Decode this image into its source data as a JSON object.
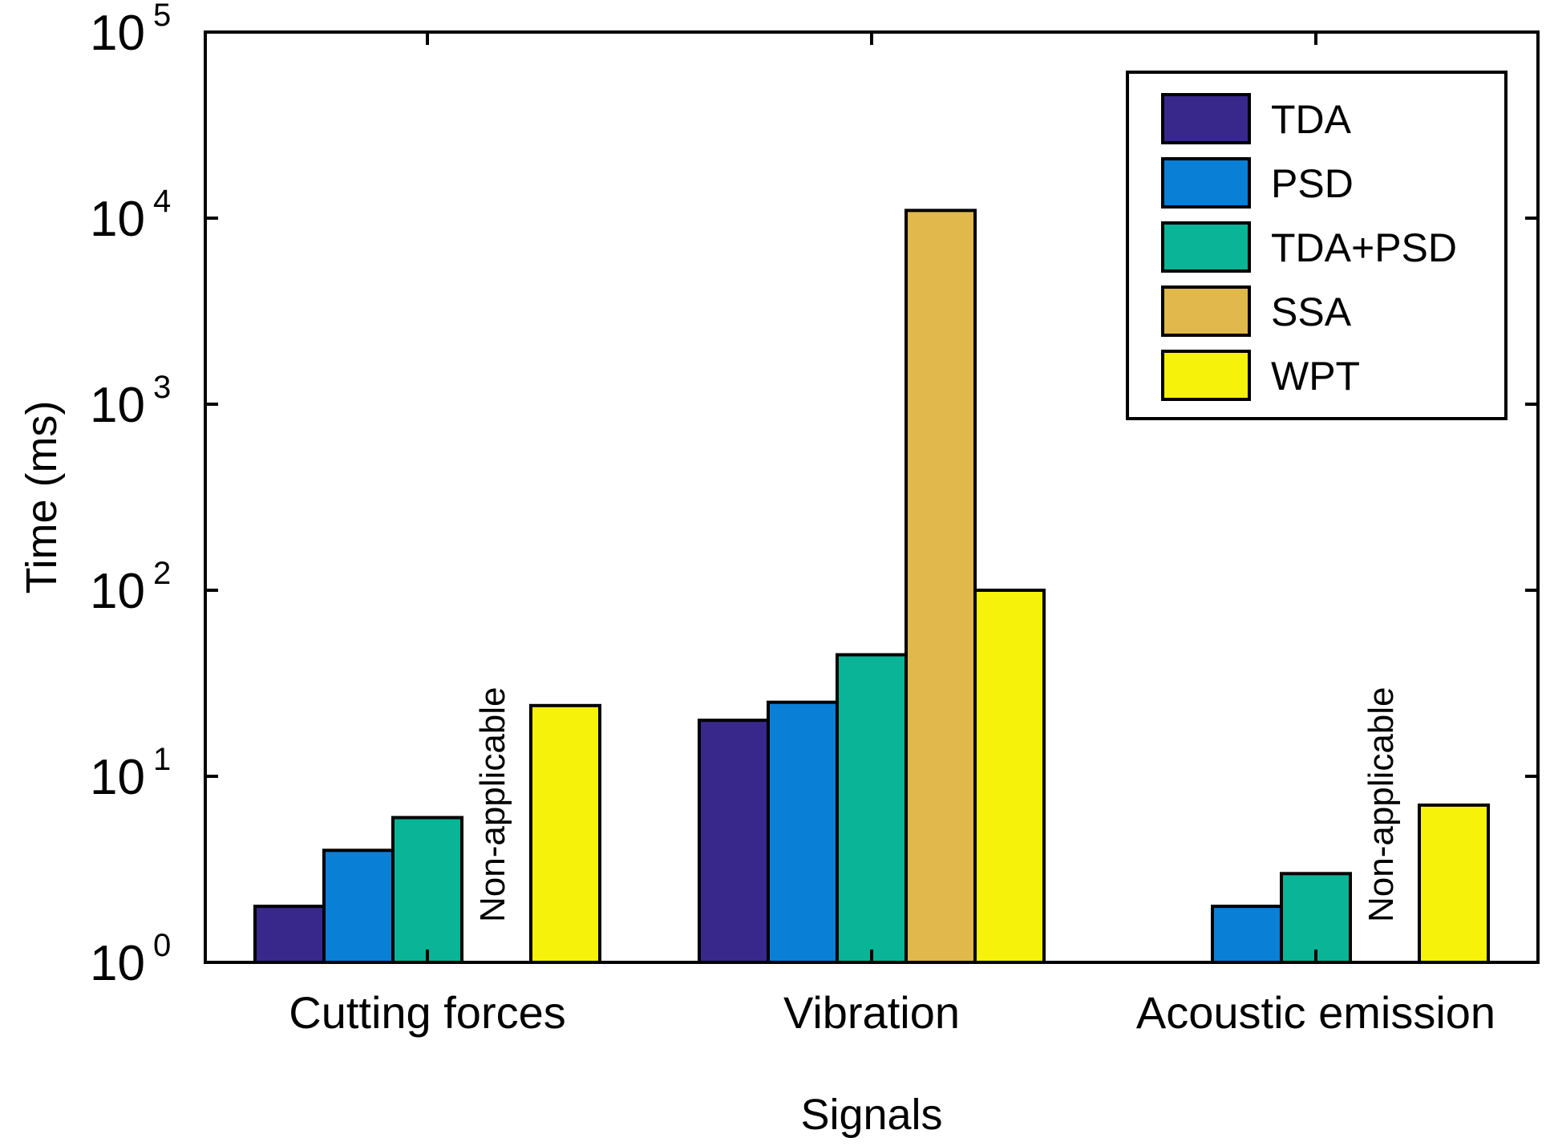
{
  "chart_data": {
    "type": "bar",
    "title": "",
    "xlabel": "Signals",
    "ylabel": "Time (ms)",
    "yscale": "log",
    "ylim": [
      1,
      100000
    ],
    "yticks": [
      {
        "base": "10",
        "exp": "0"
      },
      {
        "base": "10",
        "exp": "1"
      },
      {
        "base": "10",
        "exp": "2"
      },
      {
        "base": "10",
        "exp": "3"
      },
      {
        "base": "10",
        "exp": "4"
      },
      {
        "base": "10",
        "exp": "5"
      }
    ],
    "categories": [
      "Cutting forces",
      "Vibration",
      "Acoustic emission"
    ],
    "series": [
      {
        "name": "TDA",
        "color": "#38288c",
        "values": [
          2,
          20,
          null
        ]
      },
      {
        "name": "PSD",
        "color": "#0a7fd6",
        "values": [
          4,
          25,
          2
        ]
      },
      {
        "name": "TDA+PSD",
        "color": "#0ab496",
        "values": [
          6,
          45,
          3
        ]
      },
      {
        "name": "SSA",
        "color": "#e0b84c",
        "values": [
          null,
          11000,
          null
        ]
      },
      {
        "name": "WPT",
        "color": "#f7f20a",
        "values": [
          24,
          100,
          7
        ]
      }
    ],
    "annotations": [
      {
        "text": "Non-applicable",
        "category": "Cutting forces",
        "series": "SSA"
      },
      {
        "text": "Non-applicable",
        "category": "Acoustic emission",
        "series": "SSA"
      }
    ],
    "legend": {
      "position": "top-right"
    },
    "grid": false
  }
}
